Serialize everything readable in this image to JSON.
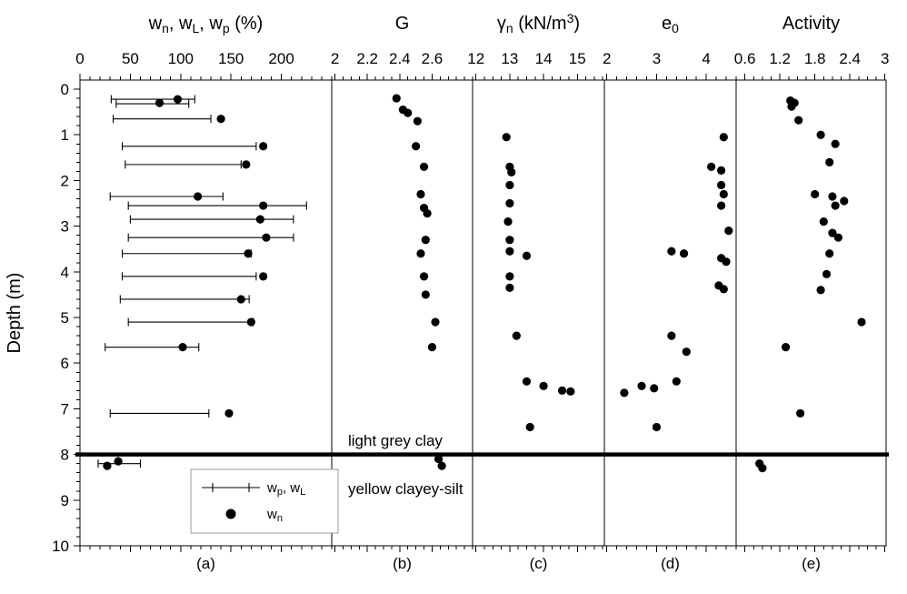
{
  "chart_data": {
    "type": "scatter",
    "orientation": "depth_profile",
    "title": "",
    "ylabel": "Depth (m)",
    "ylim": [
      0,
      10
    ],
    "yticks": [
      0,
      1,
      2,
      3,
      4,
      5,
      6,
      7,
      8,
      9,
      10
    ],
    "grid": false,
    "boundary": {
      "depth": 8,
      "label_above": "light grey clay",
      "label_below": "yellow clayey-silt"
    },
    "legend": {
      "entries": [
        {
          "symbol": "range",
          "label_segments": [
            {
              "t": "w"
            },
            {
              "t": "p",
              "s": "sub"
            },
            {
              "t": ", w"
            },
            {
              "t": "L",
              "s": "sub"
            }
          ]
        },
        {
          "symbol": "point",
          "label_segments": [
            {
              "t": "w"
            },
            {
              "t": "n",
              "s": "sub"
            }
          ]
        }
      ]
    },
    "panels": [
      {
        "id": "a",
        "letter": "(a)",
        "title_segments": [
          {
            "t": "w"
          },
          {
            "t": "n",
            "s": "sub"
          },
          {
            "t": ", w"
          },
          {
            "t": "L",
            "s": "sub"
          },
          {
            "t": ", w"
          },
          {
            "t": "p",
            "s": "sub"
          },
          {
            "t": " (%)"
          }
        ],
        "xlim": [
          0,
          250
        ],
        "xticks": [
          0,
          50,
          100,
          150,
          200
        ],
        "minor_step": 10,
        "series": [
          {
            "name": "wp-wL range",
            "kind": "range",
            "data": [
              {
                "d": 0.22,
                "lo": 31,
                "hi": 114
              },
              {
                "d": 0.32,
                "lo": 36,
                "hi": 108
              },
              {
                "d": 0.65,
                "lo": 33,
                "hi": 130
              },
              {
                "d": 1.25,
                "lo": 42,
                "hi": 175
              },
              {
                "d": 1.65,
                "lo": 45,
                "hi": 160
              },
              {
                "d": 2.35,
                "lo": 30,
                "hi": 142
              },
              {
                "d": 2.55,
                "lo": 48,
                "hi": 225
              },
              {
                "d": 2.85,
                "lo": 50,
                "hi": 212
              },
              {
                "d": 3.25,
                "lo": 48,
                "hi": 212
              },
              {
                "d": 3.6,
                "lo": 42,
                "hi": 170
              },
              {
                "d": 4.1,
                "lo": 42,
                "hi": 175
              },
              {
                "d": 4.6,
                "lo": 40,
                "hi": 168
              },
              {
                "d": 5.1,
                "lo": 48,
                "hi": 172
              },
              {
                "d": 5.65,
                "lo": 25,
                "hi": 118
              },
              {
                "d": 7.1,
                "lo": 30,
                "hi": 128
              },
              {
                "d": 8.2,
                "lo": 18,
                "hi": 60
              }
            ]
          },
          {
            "name": "wn",
            "kind": "points",
            "data": [
              {
                "d": 0.22,
                "v": 97
              },
              {
                "d": 0.3,
                "v": 79
              },
              {
                "d": 0.65,
                "v": 140
              },
              {
                "d": 1.25,
                "v": 182
              },
              {
                "d": 1.65,
                "v": 165
              },
              {
                "d": 2.35,
                "v": 117
              },
              {
                "d": 2.55,
                "v": 182
              },
              {
                "d": 2.85,
                "v": 179
              },
              {
                "d": 3.25,
                "v": 185
              },
              {
                "d": 3.6,
                "v": 167
              },
              {
                "d": 4.1,
                "v": 182
              },
              {
                "d": 4.6,
                "v": 160
              },
              {
                "d": 5.1,
                "v": 170
              },
              {
                "d": 5.65,
                "v": 102
              },
              {
                "d": 7.1,
                "v": 148
              },
              {
                "d": 8.15,
                "v": 38
              },
              {
                "d": 8.25,
                "v": 27
              }
            ]
          }
        ]
      },
      {
        "id": "b",
        "letter": "(b)",
        "title_segments": [
          {
            "t": "G"
          }
        ],
        "xlim": [
          1.98,
          2.85
        ],
        "xticks": [
          2,
          2.2,
          2.4,
          2.6
        ],
        "minor_step": 0.05,
        "series": [
          {
            "name": "G",
            "kind": "points",
            "data": [
              {
                "d": 0.2,
                "v": 2.38
              },
              {
                "d": 0.45,
                "v": 2.42
              },
              {
                "d": 0.52,
                "v": 2.45
              },
              {
                "d": 0.7,
                "v": 2.51
              },
              {
                "d": 1.25,
                "v": 2.5
              },
              {
                "d": 1.7,
                "v": 2.55
              },
              {
                "d": 2.3,
                "v": 2.53
              },
              {
                "d": 2.6,
                "v": 2.55
              },
              {
                "d": 2.72,
                "v": 2.57
              },
              {
                "d": 3.3,
                "v": 2.56
              },
              {
                "d": 3.6,
                "v": 2.53
              },
              {
                "d": 4.1,
                "v": 2.55
              },
              {
                "d": 4.5,
                "v": 2.56
              },
              {
                "d": 5.1,
                "v": 2.62
              },
              {
                "d": 5.65,
                "v": 2.6
              },
              {
                "d": 8.1,
                "v": 2.64
              },
              {
                "d": 8.25,
                "v": 2.66
              }
            ]
          }
        ]
      },
      {
        "id": "c",
        "letter": "(c)",
        "title_segments": [
          {
            "t": "γ"
          },
          {
            "t": "n",
            "s": "sub"
          },
          {
            "t": " (kN/m"
          },
          {
            "t": "3",
            "s": "sup"
          },
          {
            "t": ")"
          }
        ],
        "xlim": [
          11.9,
          15.8
        ],
        "xticks": [
          12,
          13,
          14,
          15
        ],
        "minor_step": 0.25,
        "series": [
          {
            "name": "gamma_n",
            "kind": "points",
            "data": [
              {
                "d": 1.05,
                "v": 12.9
              },
              {
                "d": 1.7,
                "v": 13.0
              },
              {
                "d": 1.82,
                "v": 13.05
              },
              {
                "d": 2.1,
                "v": 13.0
              },
              {
                "d": 2.5,
                "v": 13.0
              },
              {
                "d": 2.9,
                "v": 12.95
              },
              {
                "d": 3.3,
                "v": 13.0
              },
              {
                "d": 3.55,
                "v": 13.0
              },
              {
                "d": 3.65,
                "v": 13.5
              },
              {
                "d": 4.1,
                "v": 13.0
              },
              {
                "d": 4.35,
                "v": 13.0
              },
              {
                "d": 5.4,
                "v": 13.2
              },
              {
                "d": 6.4,
                "v": 13.5
              },
              {
                "d": 6.5,
                "v": 14.0
              },
              {
                "d": 6.6,
                "v": 14.55
              },
              {
                "d": 6.62,
                "v": 14.8
              },
              {
                "d": 7.4,
                "v": 13.6
              }
            ]
          }
        ]
      },
      {
        "id": "d",
        "letter": "(d)",
        "title_segments": [
          {
            "t": "e"
          },
          {
            "t": "0",
            "s": "sub"
          }
        ],
        "xlim": [
          1.95,
          4.6
        ],
        "xticks": [
          2,
          3,
          4
        ],
        "minor_step": 0.2,
        "series": [
          {
            "name": "e0",
            "kind": "points",
            "data": [
              {
                "d": 1.05,
                "v": 4.35
              },
              {
                "d": 1.7,
                "v": 4.1
              },
              {
                "d": 1.78,
                "v": 4.3
              },
              {
                "d": 2.1,
                "v": 4.3
              },
              {
                "d": 2.3,
                "v": 4.35
              },
              {
                "d": 2.55,
                "v": 4.3
              },
              {
                "d": 3.1,
                "v": 4.45
              },
              {
                "d": 3.55,
                "v": 3.3
              },
              {
                "d": 3.6,
                "v": 3.55
              },
              {
                "d": 3.7,
                "v": 4.3
              },
              {
                "d": 3.78,
                "v": 4.4
              },
              {
                "d": 4.3,
                "v": 4.25
              },
              {
                "d": 4.38,
                "v": 4.35
              },
              {
                "d": 5.4,
                "v": 3.3
              },
              {
                "d": 5.75,
                "v": 3.6
              },
              {
                "d": 6.4,
                "v": 3.4
              },
              {
                "d": 6.5,
                "v": 2.7
              },
              {
                "d": 6.55,
                "v": 2.95
              },
              {
                "d": 6.65,
                "v": 2.35
              },
              {
                "d": 7.4,
                "v": 3.0
              }
            ]
          }
        ]
      },
      {
        "id": "e",
        "letter": "(e)",
        "title_segments": [
          {
            "t": "Activity"
          }
        ],
        "xlim": [
          0.45,
          3.02
        ],
        "xticks": [
          0.6,
          1.2,
          1.8,
          2.4,
          3
        ],
        "minor_step": 0.15,
        "series": [
          {
            "name": "activity",
            "kind": "points",
            "data": [
              {
                "d": 0.25,
                "v": 1.38
              },
              {
                "d": 0.3,
                "v": 1.45
              },
              {
                "d": 0.38,
                "v": 1.4
              },
              {
                "d": 0.68,
                "v": 1.52
              },
              {
                "d": 1.0,
                "v": 1.9
              },
              {
                "d": 1.2,
                "v": 2.15
              },
              {
                "d": 1.6,
                "v": 2.05
              },
              {
                "d": 2.3,
                "v": 1.8
              },
              {
                "d": 2.35,
                "v": 2.1
              },
              {
                "d": 2.45,
                "v": 2.3
              },
              {
                "d": 2.55,
                "v": 2.15
              },
              {
                "d": 2.9,
                "v": 1.95
              },
              {
                "d": 3.15,
                "v": 2.1
              },
              {
                "d": 3.25,
                "v": 2.2
              },
              {
                "d": 3.6,
                "v": 2.05
              },
              {
                "d": 4.05,
                "v": 2.0
              },
              {
                "d": 4.4,
                "v": 1.9
              },
              {
                "d": 5.1,
                "v": 2.6
              },
              {
                "d": 5.65,
                "v": 1.3
              },
              {
                "d": 7.1,
                "v": 1.55
              },
              {
                "d": 8.2,
                "v": 0.85
              },
              {
                "d": 8.3,
                "v": 0.9
              }
            ]
          }
        ]
      }
    ]
  }
}
